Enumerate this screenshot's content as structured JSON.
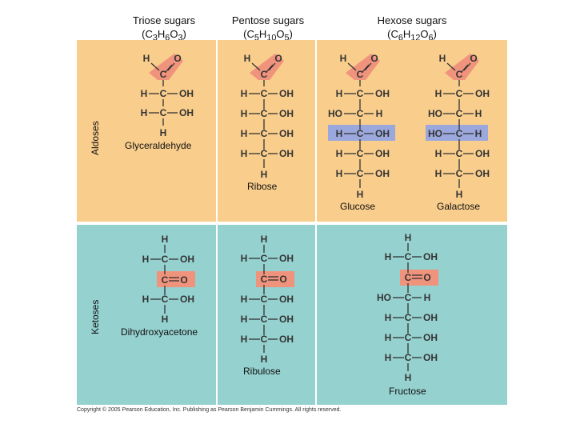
{
  "headers": {
    "triose": {
      "name": "Triose sugars",
      "formula_prefix": "(C",
      "c": "3",
      "h": "6",
      "o": "3"
    },
    "pentose": {
      "name": "Pentose sugars",
      "formula_prefix": "(C",
      "c": "5",
      "h": "10",
      "o": "5"
    },
    "hexose": {
      "name": "Hexose sugars",
      "formula_prefix": "(C",
      "c": "6",
      "h": "12",
      "o": "6"
    }
  },
  "rows": {
    "aldoses": "Aldoses",
    "ketoses": "Ketoses"
  },
  "names": {
    "glyceraldehyde": "Glyceraldehyde",
    "ribose": "Ribose",
    "glucose": "Glucose",
    "galactose": "Galactose",
    "dihydroxyacetone": "Dihydroxyacetone",
    "ribulose": "Ribulose",
    "fructose": "Fructose"
  },
  "colors": {
    "aldose_bg": "#f9cd8c",
    "ketose_bg": "#95d1cf",
    "carbonyl_highlight": "#f0937c",
    "isomer_highlight": "#9ba8dd"
  },
  "copyright": "Copyright © 2005 Pearson Education, Inc. Publishing as Pearson Benjamin Cummings. All rights reserved."
}
